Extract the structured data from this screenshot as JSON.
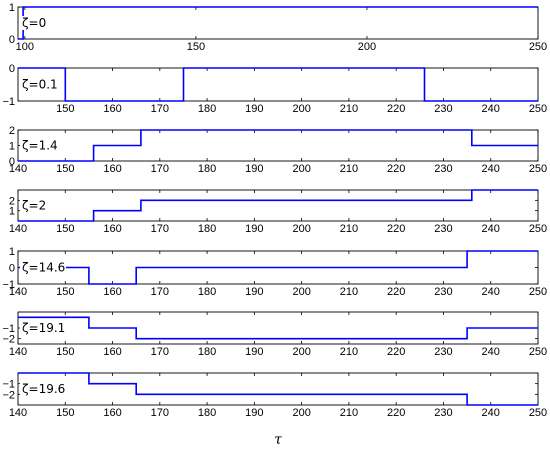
{
  "chart_data": {
    "type": "line",
    "xlabel": "τ",
    "line_color": "#0000ff",
    "panels": [
      {
        "label": "ζ=0",
        "xlim": [
          98,
          250
        ],
        "xticks": [
          100,
          150,
          200,
          250
        ],
        "ylim": [
          0,
          1
        ],
        "yticks": [
          0,
          1
        ],
        "x": [
          98,
          99.5,
          99.5,
          250
        ],
        "y": [
          0,
          0,
          1,
          1
        ]
      },
      {
        "label": "ζ=0.1",
        "xlim": [
          140,
          250
        ],
        "xticks": [
          150,
          160,
          170,
          180,
          190,
          200,
          210,
          220,
          230,
          240,
          250
        ],
        "ylim": [
          -1,
          0
        ],
        "yticks": [
          -1,
          0
        ],
        "x": [
          140,
          150,
          150,
          175,
          175,
          226,
          226,
          250
        ],
        "y": [
          0,
          0,
          -1,
          -1,
          0,
          0,
          -1,
          -1
        ]
      },
      {
        "label": "ζ=1.4",
        "xlim": [
          140,
          250
        ],
        "xticks": [
          140,
          150,
          160,
          170,
          180,
          190,
          200,
          210,
          220,
          230,
          240,
          250
        ],
        "ylim": [
          0,
          2
        ],
        "yticks": [
          0,
          1,
          2
        ],
        "x": [
          140,
          156,
          156,
          166,
          166,
          236,
          236,
          250
        ],
        "y": [
          0,
          0,
          1,
          1,
          2,
          2,
          1,
          1
        ]
      },
      {
        "label": "ζ=2",
        "xlim": [
          140,
          250
        ],
        "xticks": [
          140,
          150,
          160,
          170,
          180,
          190,
          200,
          210,
          220,
          230,
          240,
          250
        ],
        "ylim": [
          0,
          3
        ],
        "yticks": [
          1,
          2
        ],
        "x": [
          140,
          156,
          156,
          166,
          166,
          236,
          236,
          250
        ],
        "y": [
          0,
          0,
          1,
          1,
          2,
          2,
          3,
          3
        ]
      },
      {
        "label": "ζ=14.6",
        "xlim": [
          140,
          250
        ],
        "xticks": [
          140,
          150,
          160,
          170,
          180,
          190,
          200,
          210,
          220,
          230,
          240,
          250
        ],
        "ylim": [
          -1,
          1
        ],
        "yticks": [
          -1,
          0,
          1
        ],
        "x": [
          140,
          155,
          155,
          165,
          165,
          235,
          235,
          250
        ],
        "y": [
          0,
          0,
          -1,
          -1,
          0,
          0,
          1,
          1
        ]
      },
      {
        "label": "ζ=19.1",
        "xlim": [
          140,
          250
        ],
        "xticks": [
          140,
          150,
          160,
          170,
          180,
          190,
          200,
          210,
          220,
          230,
          240,
          250
        ],
        "ylim": [
          -2.5,
          0.5
        ],
        "yticks": [
          -2,
          -1
        ],
        "x": [
          140,
          155,
          155,
          165,
          165,
          235,
          235,
          250
        ],
        "y": [
          0,
          0,
          -1,
          -1,
          -2,
          -2,
          -1,
          -1
        ]
      },
      {
        "label": "ζ=19.6",
        "xlim": [
          140,
          250
        ],
        "xticks": [
          140,
          150,
          160,
          170,
          180,
          190,
          200,
          210,
          220,
          230,
          240,
          250
        ],
        "ylim": [
          -3,
          0
        ],
        "yticks": [
          -2,
          -1
        ],
        "x": [
          140,
          155,
          155,
          165,
          165,
          235,
          235,
          250
        ],
        "y": [
          0,
          0,
          -1,
          -1,
          -2,
          -2,
          -3,
          -3
        ]
      }
    ]
  }
}
